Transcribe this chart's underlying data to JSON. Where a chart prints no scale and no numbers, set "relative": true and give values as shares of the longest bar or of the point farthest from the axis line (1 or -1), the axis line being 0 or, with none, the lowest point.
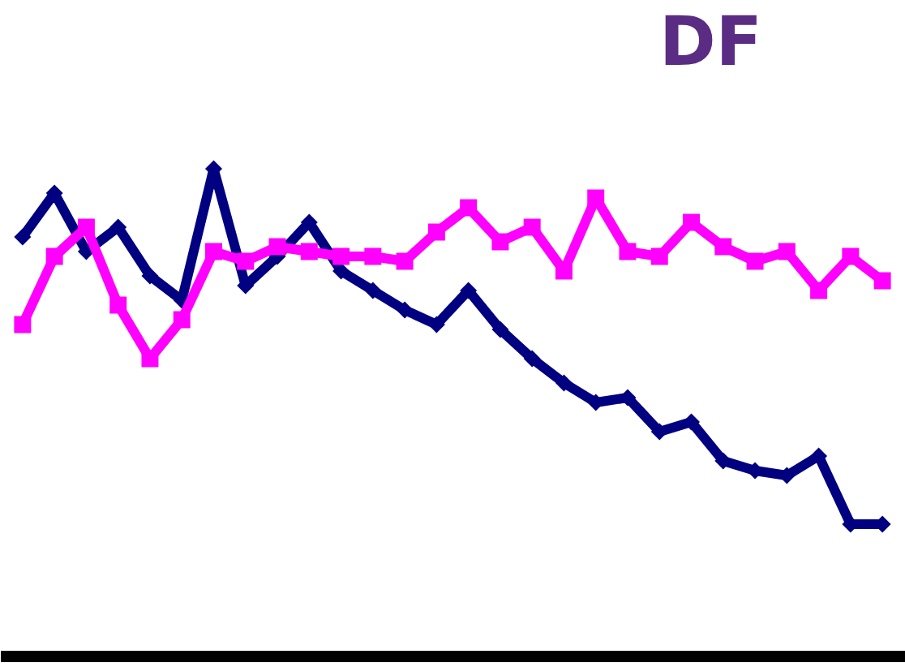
{
  "chart_data": {
    "type": "line",
    "title": "DF",
    "relative": true,
    "line_style": "solid",
    "categories": [
      null,
      null,
      null,
      null,
      null,
      null,
      null,
      null,
      null,
      null,
      null,
      null,
      null,
      null,
      null,
      null,
      null,
      null,
      null,
      null,
      null,
      null,
      null,
      null,
      null,
      null,
      null,
      null
    ],
    "series": [
      {
        "color": "#000080",
        "marker": "diamond",
        "values": [
          0.86,
          0.95,
          0.83,
          0.88,
          0.78,
          0.73,
          1,
          0.76,
          0.82,
          0.89,
          0.79,
          0.75,
          0.71,
          0.68,
          0.75,
          0.67,
          0.61,
          0.56,
          0.52,
          0.53,
          0.46,
          0.48,
          0.4,
          0.38,
          0.37,
          0.41,
          0.27,
          0.27
        ]
      },
      {
        "color": "#ff00ff",
        "marker": "square",
        "values": [
          0.68,
          0.82,
          0.88,
          0.72,
          0.61,
          0.69,
          0.83,
          0.81,
          0.84,
          0.83,
          0.82,
          0.82,
          0.81,
          0.87,
          0.92,
          0.85,
          0.88,
          0.79,
          0.94,
          0.83,
          0.82,
          0.89,
          0.84,
          0.81,
          0.83,
          0.75,
          0.82,
          0.77
        ]
      }
    ]
  }
}
